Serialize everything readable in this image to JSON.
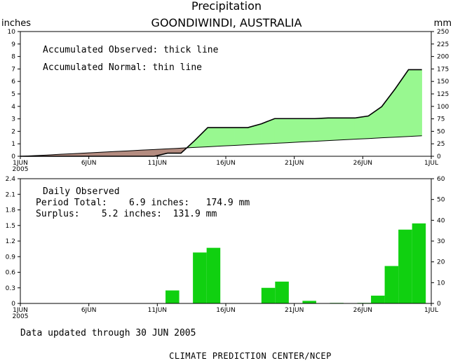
{
  "chart_data": [
    {
      "type": "area",
      "title": "Precipitation",
      "subtitle": "GOONDIWINDI, AUSTRALIA",
      "ylabel_left": "inches",
      "ylabel_right": "mm",
      "ylim_left": [
        0,
        10
      ],
      "ylim_right": [
        0,
        250
      ],
      "left_ticks": [
        "0",
        "1",
        "2",
        "3",
        "4",
        "5",
        "6",
        "7",
        "8",
        "9",
        "10"
      ],
      "right_ticks": [
        "0",
        "25",
        "50",
        "75",
        "100",
        "125",
        "150",
        "175",
        "200",
        "225",
        "250"
      ],
      "x_ticks": [
        "1JUN",
        "6JUN",
        "11JUN",
        "16JUN",
        "21JUN",
        "26JUN",
        "1JUL"
      ],
      "x_year": "2005",
      "annotations": [
        "Accumulated Observed: thick line",
        "Accumulated Normal: thin line"
      ],
      "colors": {
        "surplus": "#98f890",
        "deficit": "#b48c80",
        "line": "#000000"
      },
      "series": [
        {
          "day": [
            1,
            2,
            3,
            4,
            5,
            6,
            7,
            8,
            9,
            10,
            11,
            12,
            13,
            14,
            15,
            16,
            17,
            18,
            19,
            20,
            21,
            22,
            23,
            24,
            25,
            26,
            27,
            28,
            29,
            30
          ],
          "values": [
            0,
            0,
            0,
            0,
            0,
            0,
            0,
            0,
            0,
            0,
            0.25,
            0.25,
            1.23,
            2.3,
            2.3,
            2.3,
            2.3,
            2.6,
            3.02,
            3.02,
            3.02,
            3.02,
            3.07,
            3.07,
            3.07,
            3.23,
            3.98,
            5.4,
            6.94,
            6.94
          ]
        },
        {
          "day": [
            1,
            2,
            3,
            4,
            5,
            6,
            7,
            8,
            9,
            10,
            11,
            12,
            13,
            14,
            15,
            16,
            17,
            18,
            19,
            20,
            21,
            22,
            23,
            24,
            25,
            26,
            27,
            28,
            29,
            30
          ],
          "values": [
            0.05,
            0.1,
            0.16,
            0.21,
            0.27,
            0.32,
            0.38,
            0.43,
            0.49,
            0.54,
            0.6,
            0.65,
            0.71,
            0.76,
            0.82,
            0.87,
            0.93,
            0.98,
            1.04,
            1.09,
            1.15,
            1.2,
            1.26,
            1.31,
            1.37,
            1.42,
            1.48,
            1.53,
            1.59,
            1.64
          ]
        }
      ]
    },
    {
      "type": "bar",
      "ylim_left": [
        0,
        2.4
      ],
      "ylim_right": [
        0,
        60
      ],
      "left_ticks": [
        "0",
        "0.3",
        "0.6",
        "0.9",
        "1.2",
        "1.5",
        "1.8",
        "2.1",
        "2.4"
      ],
      "right_ticks": [
        "0",
        "10",
        "20",
        "30",
        "40",
        "50",
        "60"
      ],
      "x_ticks": [
        "1JUN",
        "6JUN",
        "11JUN",
        "16JUN",
        "21JUN",
        "26JUN",
        "1JUL"
      ],
      "x_year": "2005",
      "bar_color": "#10d010",
      "day": [
        1,
        2,
        3,
        4,
        5,
        6,
        7,
        8,
        9,
        10,
        11,
        12,
        13,
        14,
        15,
        16,
        17,
        18,
        19,
        20,
        21,
        22,
        23,
        24,
        25,
        26,
        27,
        28,
        29,
        30
      ],
      "values": [
        0,
        0,
        0,
        0,
        0,
        0,
        0,
        0,
        0,
        0,
        0.25,
        0,
        0.98,
        1.07,
        0,
        0,
        0,
        0.3,
        0.42,
        0,
        0.05,
        0,
        0.01,
        0,
        0.01,
        0.15,
        0.72,
        1.42,
        1.54,
        0
      ],
      "annotations": {
        "title": "Daily Observed",
        "total": "Period Total:    6.9 inches:   174.9 mm",
        "surplus": "Surplus:    5.2 inches:  131.9 mm"
      }
    }
  ],
  "footer": {
    "updated": "Data updated through 30 JUN 2005",
    "credit": "CLIMATE PREDICTION CENTER/NCEP"
  }
}
